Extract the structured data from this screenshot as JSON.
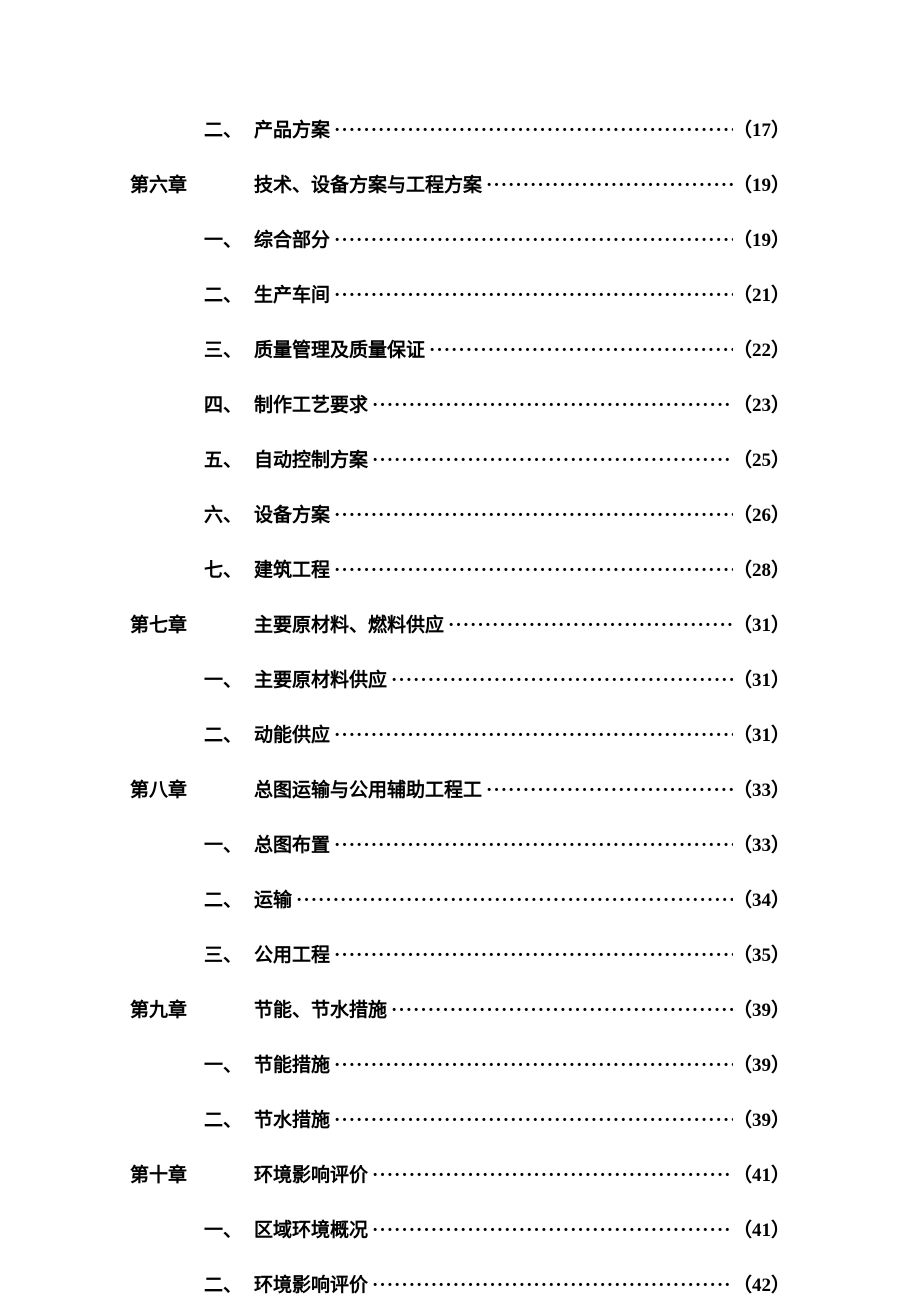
{
  "entries": [
    {
      "type": "section",
      "num": "二、",
      "title": "产品方案",
      "page": "17",
      "trailingSpace": true
    },
    {
      "type": "chapter",
      "num": "第六章",
      "title": "技术、设备方案与工程方案",
      "page": "19",
      "trailingSpace": true
    },
    {
      "type": "section",
      "num": "一、",
      "title": "综合部分",
      "page": "19",
      "trailingSpace": false
    },
    {
      "type": "section",
      "num": "二、",
      "title": "生产车间",
      "page": "21",
      "trailingSpace": false
    },
    {
      "type": "section",
      "num": "三、",
      "title": "质量管理及质量保证",
      "page": "22",
      "trailingSpace": false
    },
    {
      "type": "section",
      "num": "四、",
      "title": "制作工艺要求",
      "page": "23",
      "trailingSpace": false
    },
    {
      "type": "section",
      "num": "五、",
      "title": "自动控制方案",
      "page": "25",
      "trailingSpace": false
    },
    {
      "type": "section",
      "num": "六、",
      "title": "设备方案",
      "page": "26",
      "trailingSpace": false
    },
    {
      "type": "section",
      "num": "七、",
      "title": "建筑工程",
      "page": "28",
      "trailingSpace": false
    },
    {
      "type": "chapter",
      "num": "第七章",
      "title": "主要原材料、燃料供应",
      "page": "31",
      "trailingSpace": false
    },
    {
      "type": "section",
      "num": "一、",
      "title": "主要原材料供应",
      "page": "31",
      "trailingSpace": false
    },
    {
      "type": "section",
      "num": "二、",
      "title": "动能供应",
      "page": "31",
      "trailingSpace": false
    },
    {
      "type": "chapter",
      "num": "第八章",
      "title": "总图运输与公用辅助工程工",
      "page": "33",
      "trailingSpace": true
    },
    {
      "type": "section",
      "num": "一、",
      "title": "总图布置",
      "page": "33",
      "trailingSpace": true
    },
    {
      "type": "section",
      "num": "二、",
      "title": "运输",
      "page": "34",
      "trailingSpace": true
    },
    {
      "type": "section",
      "num": "三、",
      "title": "公用工程",
      "page": "35",
      "trailingSpace": true
    },
    {
      "type": "chapter",
      "num": "第九章",
      "title": "节能、节水措施",
      "page": "39",
      "trailingSpace": true
    },
    {
      "type": "section",
      "num": "一、",
      "title": "节能措施",
      "page": "39",
      "trailingSpace": true
    },
    {
      "type": "section",
      "num": "二、",
      "title": "节水措施",
      "page": "39",
      "trailingSpace": true
    },
    {
      "type": "chapter",
      "num": "第十章",
      "title": "环境影响评价",
      "page": "41",
      "trailingSpace": true
    },
    {
      "type": "section",
      "num": "一、",
      "title": "区域环境概况",
      "page": "41",
      "trailingSpace": true
    },
    {
      "type": "section",
      "num": "二、",
      "title": "环境影响评价",
      "page": "42",
      "trailingSpace": true
    }
  ],
  "style": {
    "fontSize": 19,
    "fontWeight": "bold",
    "textColor": "#000000",
    "backgroundColor": "#ffffff",
    "rowSpacing": 28,
    "leaderChar": "·"
  }
}
